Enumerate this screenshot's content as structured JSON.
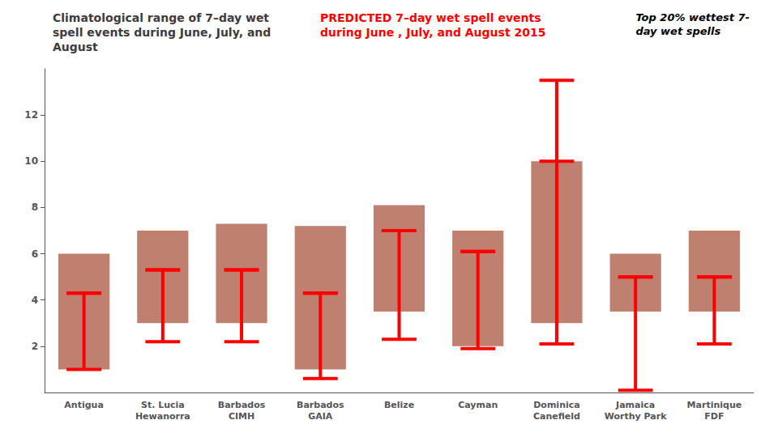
{
  "chart_data": {
    "type": "bar",
    "title": "Climatological range of 7–day wet\nspell events during June, July, and\nAugust",
    "subtitle": "PREDICTED 7–day wet spell events\nduring June , July, and August 2015",
    "annotation": "Top 20% wettest 7-\nday wet spells",
    "categories": [
      "Antigua",
      "St. Lucia\nHewanorra",
      "Barbados\nCIMH",
      "Barbados\nGAIA",
      "Belize",
      "Cayman",
      "Dominica\nCanefield",
      "Jamaica\nWorthy Park",
      "Martinique\nFDF"
    ],
    "series": [
      {
        "type": "range",
        "color": "#c08070",
        "low": [
          1.0,
          3.0,
          3.0,
          1.0,
          3.5,
          2.0,
          3.0,
          3.5,
          3.5
        ],
        "high": [
          6.0,
          7.0,
          7.3,
          7.2,
          8.1,
          7.0,
          10.0,
          6.0,
          7.0
        ]
      },
      {
        "type": "errorbar",
        "color": "#ff0000",
        "values": [
          4.3,
          5.3,
          5.3,
          4.3,
          7.0,
          6.1,
          10.0,
          5.0,
          5.0
        ],
        "lower": [
          1.0,
          2.2,
          2.2,
          0.6,
          2.3,
          1.9,
          2.1,
          0.1,
          2.1
        ],
        "upper": [
          4.3,
          5.3,
          5.3,
          4.3,
          7.0,
          6.1,
          13.5,
          5.0,
          5.0
        ]
      }
    ],
    "ylim": [
      0,
      14
    ],
    "yticks": [
      2,
      4,
      6,
      8,
      10,
      12
    ],
    "grid": false
  }
}
